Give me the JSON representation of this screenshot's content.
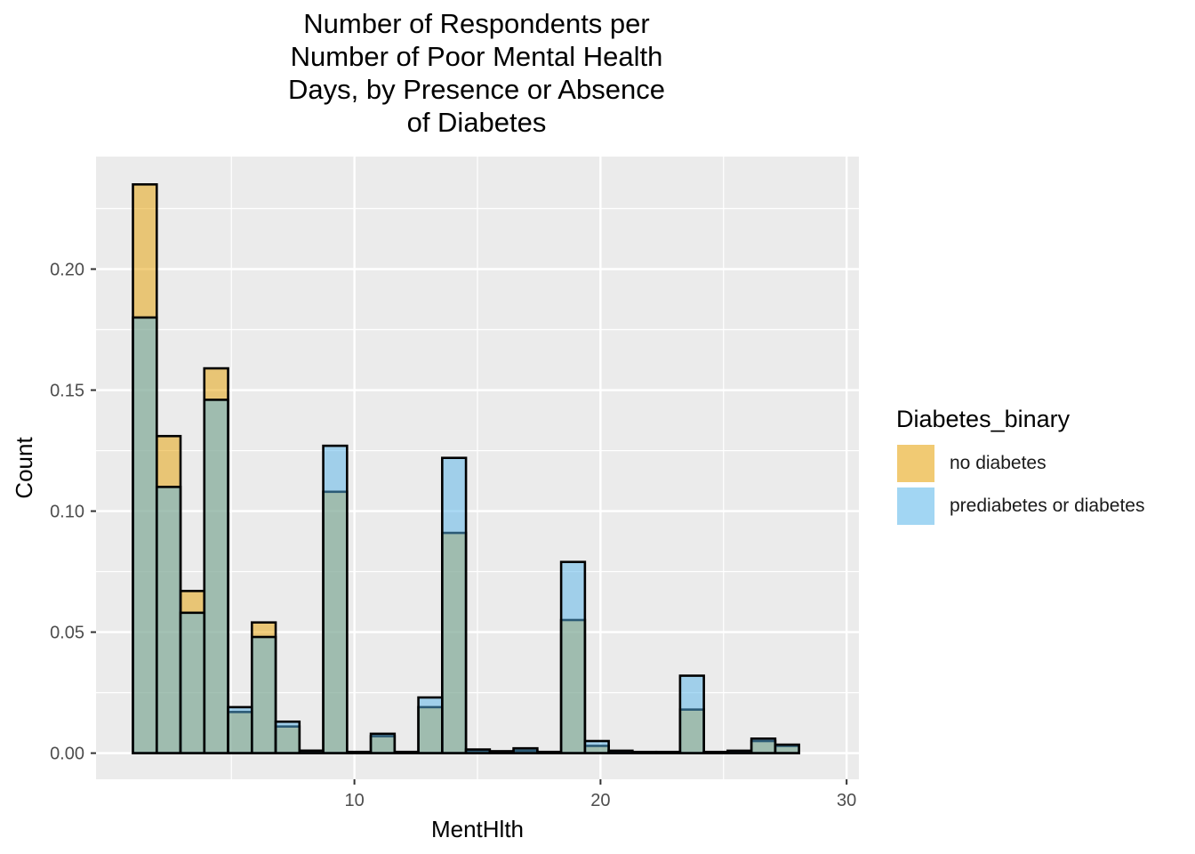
{
  "chart_data": {
    "type": "histogram",
    "title_lines": [
      "Number of Respondents per",
      "Number of Poor Mental Health",
      "Days, by Presence or Absence",
      "of Diabetes"
    ],
    "xlabel": "MentHlth",
    "ylabel": "Count",
    "xlim": [
      -0.5,
      30.5
    ],
    "ylim": [
      -0.0108,
      0.2465
    ],
    "x_ticks": [
      10,
      20,
      30
    ],
    "y_ticks": [
      0.0,
      0.05,
      0.1,
      0.15,
      0.2
    ],
    "y_tick_labels": [
      "0.00",
      "0.05",
      "0.10",
      "0.15",
      "0.20"
    ],
    "grid": true,
    "bin_edges": [
      1.0,
      1.9667,
      2.9333,
      3.9,
      4.8667,
      5.8333,
      6.8,
      7.7667,
      8.7333,
      9.7,
      10.6667,
      11.6333,
      12.6,
      13.5667,
      14.5333,
      15.5,
      16.4667,
      17.4333,
      18.4,
      19.3667,
      20.3333,
      21.3,
      22.2667,
      23.2333,
      24.2,
      25.1667,
      26.1333,
      27.1,
      28.0667,
      29.0333,
      30.0
    ],
    "series": [
      {
        "name": "no diabetes",
        "color": "#e69f00",
        "values": [
          0.235,
          0.131,
          0.067,
          0.159,
          0.017,
          0.054,
          0.011,
          0.001,
          0.108,
          0.0005,
          0.007,
          0.0005,
          0.019,
          0.091,
          0.001,
          0.0005,
          0.001,
          0.0005,
          0.055,
          0.003,
          0.0005,
          0.0003,
          0.0003,
          0.018,
          0.0003,
          0.0005,
          0.005,
          0.003,
          0,
          0
        ]
      },
      {
        "name": "prediabetes or diabetes",
        "color": "#56b4e9",
        "values": [
          0.18,
          0.11,
          0.058,
          0.146,
          0.019,
          0.048,
          0.013,
          0.001,
          0.127,
          0.0005,
          0.008,
          0.0005,
          0.023,
          0.122,
          0.0015,
          0.0008,
          0.002,
          0.0005,
          0.079,
          0.005,
          0.001,
          0.0005,
          0.0005,
          0.032,
          0.0005,
          0.001,
          0.006,
          0.0035,
          0,
          0
        ]
      }
    ],
    "legend": {
      "title": "Diabetes_binary",
      "position": "right"
    }
  }
}
